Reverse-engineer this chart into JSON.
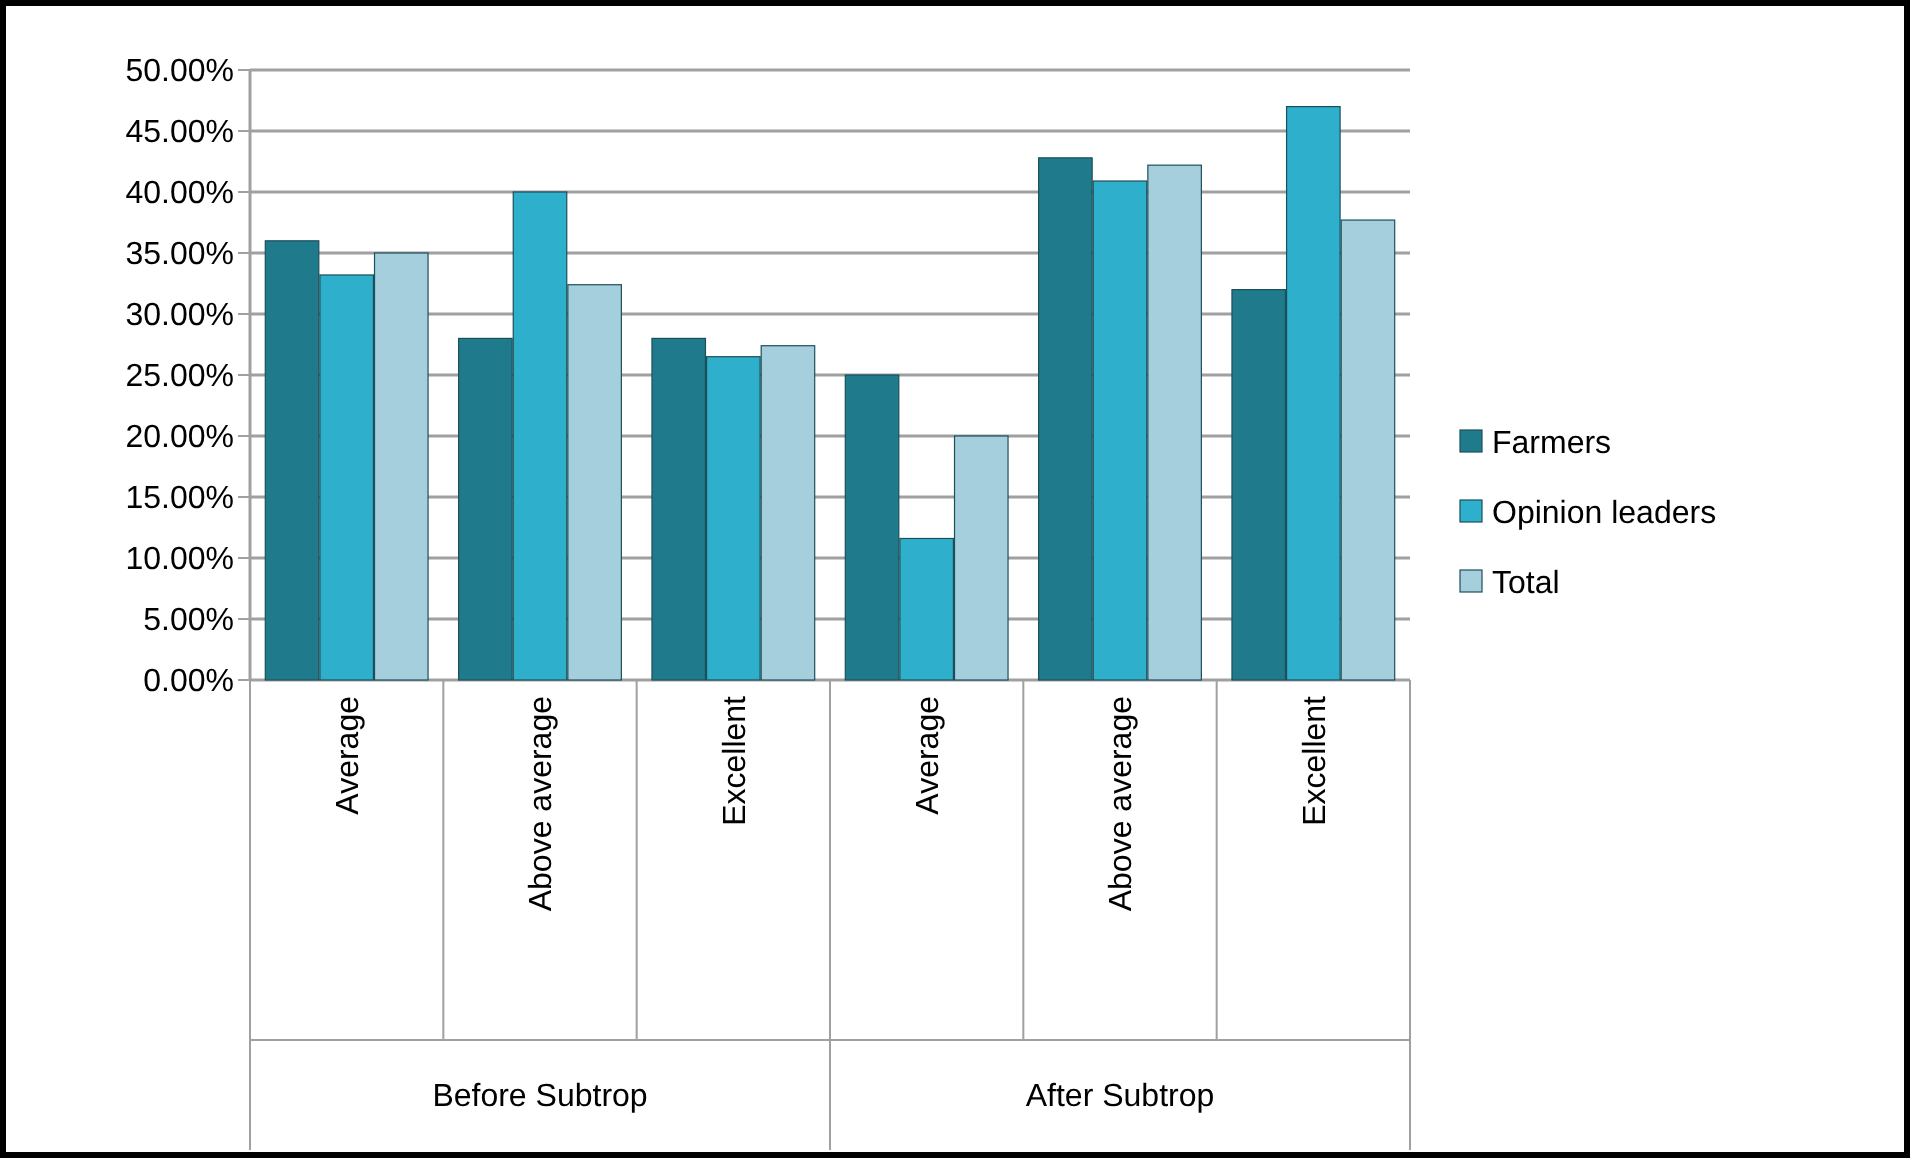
{
  "chart_data": {
    "type": "bar",
    "categories": [
      "Average",
      "Above average",
      "Excellent",
      "Average",
      "Above average",
      "Excellent"
    ],
    "annotations": [
      "Before Subtrop",
      "After Subtrop"
    ],
    "series": [
      {
        "name": "Farmers",
        "color": "#1f7a8c",
        "values": [
          36,
          28,
          28,
          25,
          42.8,
          32
        ]
      },
      {
        "name": "Opinion leaders",
        "color": "#2eb0cc",
        "values": [
          33.2,
          40,
          26.5,
          11.6,
          40.9,
          47
        ]
      },
      {
        "name": "Total",
        "color": "#a5cfdc",
        "values": [
          35,
          32.4,
          27.4,
          20,
          42.2,
          37.7
        ]
      }
    ],
    "ylim": [
      0,
      50
    ],
    "yticks": [
      {
        "value": 0,
        "label": "0.00%"
      },
      {
        "value": 5,
        "label": "5.00%"
      },
      {
        "value": 10,
        "label": "10.00%"
      },
      {
        "value": 15,
        "label": "15.00%"
      },
      {
        "value": 20,
        "label": "20.00%"
      },
      {
        "value": 25,
        "label": "25.00%"
      },
      {
        "value": 30,
        "label": "30.00%"
      },
      {
        "value": 35,
        "label": "35.00%"
      },
      {
        "value": 40,
        "label": "40.00%"
      },
      {
        "value": 45,
        "label": "45.00%"
      },
      {
        "value": 50,
        "label": "50.00%"
      }
    ],
    "grid": "y",
    "legend": "right"
  }
}
